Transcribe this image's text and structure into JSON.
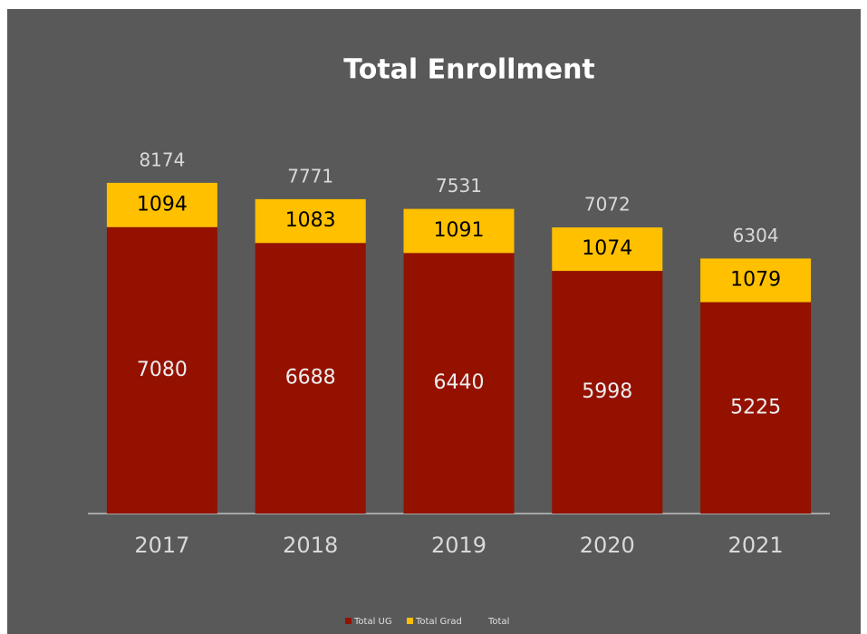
{
  "chart_data": {
    "type": "stacked-bar",
    "title": "Total Enrollment",
    "categories": [
      "2017",
      "2018",
      "2019",
      "2020",
      "2021"
    ],
    "series": [
      {
        "name": "Total UG",
        "color": "#941100",
        "values": [
          7080,
          6688,
          6440,
          5998,
          5225
        ]
      },
      {
        "name": "Total Grad",
        "color": "#ffc000",
        "values": [
          1094,
          1083,
          1091,
          1074,
          1079
        ]
      },
      {
        "name": "Total",
        "color": null,
        "values": [
          8174,
          7771,
          7531,
          7072,
          6304
        ]
      }
    ],
    "ylim": [
      0,
      9000
    ],
    "legend": "bottom",
    "grid": false
  }
}
